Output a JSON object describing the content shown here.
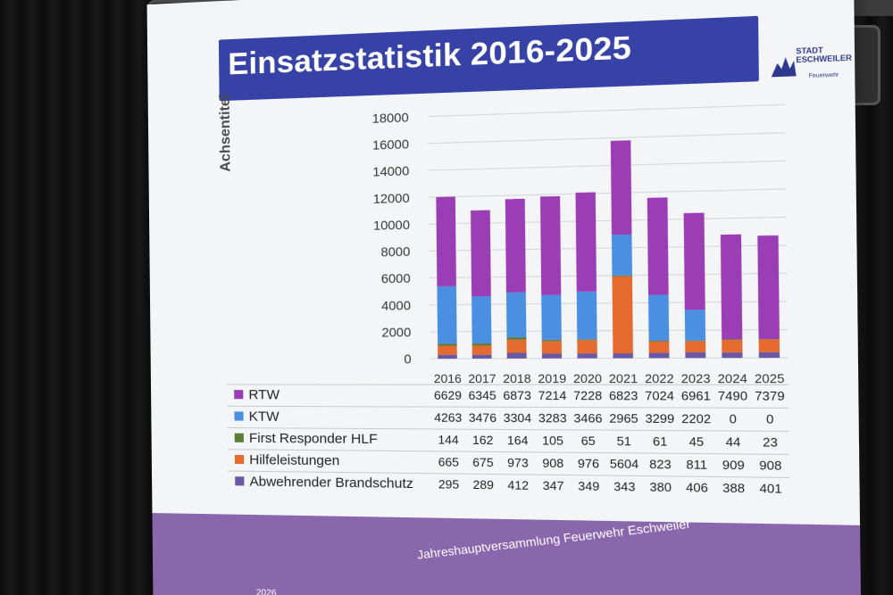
{
  "slide": {
    "title": "Einsatzstatistik 2016-2025",
    "logo": {
      "line1": "STADT",
      "line2": "ESCHWEILER",
      "line3": "Feuerwehr",
      "emblem_icon": "city-crest-icon"
    },
    "footer": "Jahreshauptversammlung Feuerwehr Eschweiler",
    "footer_date": "2026",
    "y_axis_title": "Achsentitel"
  },
  "chart_data": {
    "type": "bar",
    "stacked": true,
    "categories": [
      "2016",
      "2017",
      "2018",
      "2019",
      "2020",
      "2021",
      "2022",
      "2023",
      "2024",
      "2025"
    ],
    "series": [
      {
        "name": "RTW",
        "color": "#9b3db5",
        "values": [
          6629,
          6345,
          6873,
          7214,
          7228,
          6823,
          7024,
          6961,
          7490,
          7379
        ]
      },
      {
        "name": "KTW",
        "color": "#4b8fe2",
        "values": [
          4263,
          3476,
          3304,
          3283,
          3466,
          2965,
          3299,
          2202,
          0,
          0
        ]
      },
      {
        "name": "First Responder HLF",
        "color": "#5c7d35",
        "values": [
          144,
          162,
          164,
          105,
          65,
          51,
          61,
          45,
          44,
          23
        ]
      },
      {
        "name": "Hilfeleistungen",
        "color": "#e46a2f",
        "values": [
          665,
          675,
          973,
          908,
          976,
          5604,
          823,
          811,
          909,
          908
        ]
      },
      {
        "name": "Abwehrender Brandschutz",
        "color": "#6a58a6",
        "values": [
          295,
          289,
          412,
          347,
          349,
          343,
          380,
          406,
          388,
          401
        ]
      }
    ],
    "ylim": [
      0,
      18000
    ],
    "y_ticks": [
      0,
      2000,
      4000,
      6000,
      8000,
      10000,
      12000,
      14000,
      16000,
      18000
    ],
    "grid": true,
    "legend": "data-table-left",
    "ylabel": "Achsentitel",
    "title": "Einsatzstatistik 2016-2025"
  }
}
